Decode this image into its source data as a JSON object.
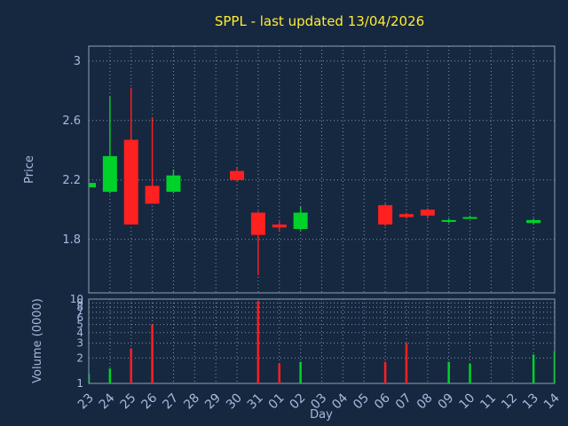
{
  "colors": {
    "background": "#162840",
    "title": "#ffec33",
    "axis_text": "#a9b8dc",
    "grid": "#7e93ad",
    "spine": "#8fa0b5",
    "up": "#00d22a",
    "down": "#ff2020"
  },
  "chart_data": [
    {
      "type": "candlestick",
      "panel": "price",
      "title": "SPPL - last updated 13/04/2026",
      "xlabel": "Day",
      "ylabel": "Price",
      "x_categories": [
        "23",
        "24",
        "25",
        "26",
        "27",
        "28",
        "29",
        "30",
        "31",
        "01",
        "02",
        "03",
        "04",
        "05",
        "06",
        "07",
        "08",
        "09",
        "10",
        "11",
        "12",
        "13",
        "14"
      ],
      "y_ticks": [
        1.8,
        2.2,
        2.6,
        3
      ],
      "ylim": [
        1.44,
        3.1
      ],
      "grid": true,
      "candles": [
        {
          "day": "23",
          "open": 2.15,
          "high": 2.18,
          "low": 2.14,
          "close": 2.18
        },
        {
          "day": "24",
          "open": 2.12,
          "high": 2.76,
          "low": 2.11,
          "close": 2.36
        },
        {
          "day": "25",
          "open": 2.47,
          "high": 2.82,
          "low": 1.9,
          "close": 1.9
        },
        {
          "day": "26",
          "open": 2.16,
          "high": 2.62,
          "low": 2.04,
          "close": 2.04
        },
        {
          "day": "27",
          "open": 2.12,
          "high": 2.27,
          "low": 2.11,
          "close": 2.23
        },
        {
          "day": "30",
          "open": 2.26,
          "high": 2.28,
          "low": 2.19,
          "close": 2.2
        },
        {
          "day": "31",
          "open": 1.98,
          "high": 1.99,
          "low": 1.56,
          "close": 1.83
        },
        {
          "day": "01",
          "open": 1.9,
          "high": 1.92,
          "low": 1.86,
          "close": 1.88
        },
        {
          "day": "02",
          "open": 1.87,
          "high": 2.02,
          "low": 1.86,
          "close": 1.98
        },
        {
          "day": "06",
          "open": 2.03,
          "high": 2.04,
          "low": 1.89,
          "close": 1.9
        },
        {
          "day": "07",
          "open": 1.97,
          "high": 1.98,
          "low": 1.94,
          "close": 1.95
        },
        {
          "day": "08",
          "open": 2.0,
          "high": 2.01,
          "low": 1.94,
          "close": 1.96
        },
        {
          "day": "09",
          "open": 1.92,
          "high": 1.94,
          "low": 1.91,
          "close": 1.93
        },
        {
          "day": "10",
          "open": 1.94,
          "high": 1.96,
          "low": 1.94,
          "close": 1.95
        },
        {
          "day": "13",
          "open": 1.91,
          "high": 1.94,
          "low": 1.9,
          "close": 1.93
        }
      ]
    },
    {
      "type": "bar",
      "panel": "volume",
      "ylabel": "Volume (0000)",
      "yscale": "log",
      "y_ticks": [
        1,
        2,
        3,
        4,
        5,
        6,
        7,
        8,
        9,
        10
      ],
      "ylim": [
        1,
        10
      ],
      "grid": true,
      "bars": [
        {
          "day": "23",
          "value": 1.3,
          "direction": "up"
        },
        {
          "day": "24",
          "value": 1.5,
          "direction": "up"
        },
        {
          "day": "25",
          "value": 2.6,
          "direction": "down"
        },
        {
          "day": "26",
          "value": 5.0,
          "direction": "down"
        },
        {
          "day": "31",
          "value": 9.5,
          "direction": "down"
        },
        {
          "day": "01",
          "value": 1.7,
          "direction": "down"
        },
        {
          "day": "02",
          "value": 1.8,
          "direction": "up"
        },
        {
          "day": "06",
          "value": 1.8,
          "direction": "down"
        },
        {
          "day": "07",
          "value": 3.0,
          "direction": "down"
        },
        {
          "day": "09",
          "value": 1.8,
          "direction": "up"
        },
        {
          "day": "10",
          "value": 1.7,
          "direction": "up"
        },
        {
          "day": "13",
          "value": 2.2,
          "direction": "up"
        },
        {
          "day": "14",
          "value": 2.4,
          "direction": "up"
        }
      ]
    }
  ]
}
